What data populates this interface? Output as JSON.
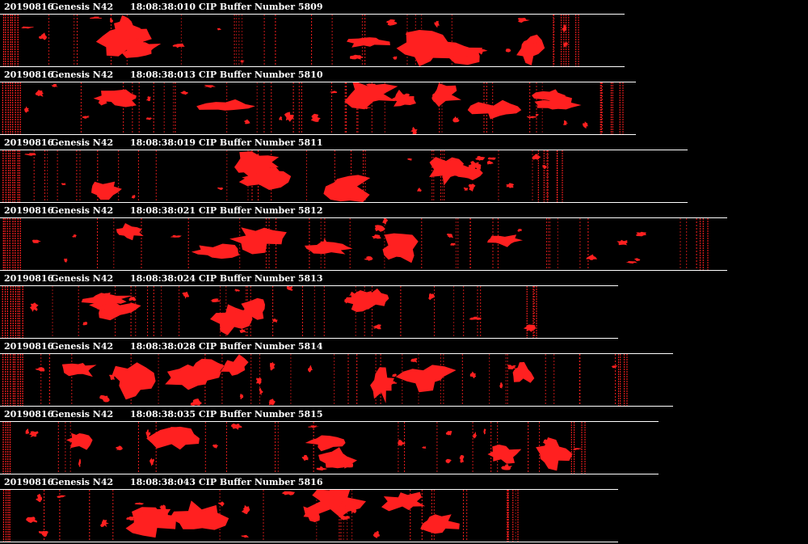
{
  "date": "20190816",
  "probe": "Genesis N42",
  "colors": {
    "particle": "#ff2020",
    "background": "#000000",
    "text": "#ffffff"
  },
  "buffers": [
    {
      "time": "18:08:38:010",
      "label": "CIP Buffer Number 5809"
    },
    {
      "time": "18:08:38:013",
      "label": "CIP Buffer Number 5810"
    },
    {
      "time": "18:08:38:019",
      "label": "CIP Buffer Number 5811"
    },
    {
      "time": "18:08:38:021",
      "label": "CIP Buffer Number 5812"
    },
    {
      "time": "18:08:38:024",
      "label": "CIP Buffer Number 5813"
    },
    {
      "time": "18:08:38:028",
      "label": "CIP Buffer Number 5814"
    },
    {
      "time": "18:08:38:035",
      "label": "CIP Buffer Number 5815"
    },
    {
      "time": "18:08:38:043",
      "label": "CIP Buffer Number 5816"
    }
  ]
}
